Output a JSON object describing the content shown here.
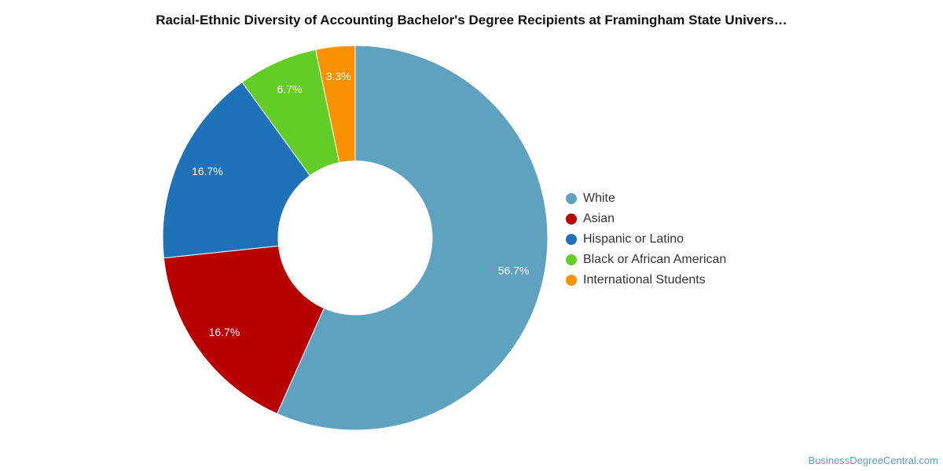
{
  "chart_data": {
    "type": "pie",
    "title": "Racial-Ethnic Diversity of Accounting Bachelor's Degree Recipients at Framingham State Univers…",
    "categories": [
      "White",
      "Asian",
      "Hispanic or Latino",
      "Black or African American",
      "International Students"
    ],
    "values": [
      56.7,
      16.7,
      16.7,
      6.7,
      3.3
    ],
    "labels": [
      "56.7%",
      "16.7%",
      "16.7%",
      "6.7%",
      "3.3%"
    ],
    "colors": [
      "#5ea2c0",
      "#b80000",
      "#1f72b8",
      "#62cd26",
      "#f89200"
    ],
    "donut": true,
    "legend": "right"
  },
  "watermark": "BusinessDegreeCentral.com"
}
